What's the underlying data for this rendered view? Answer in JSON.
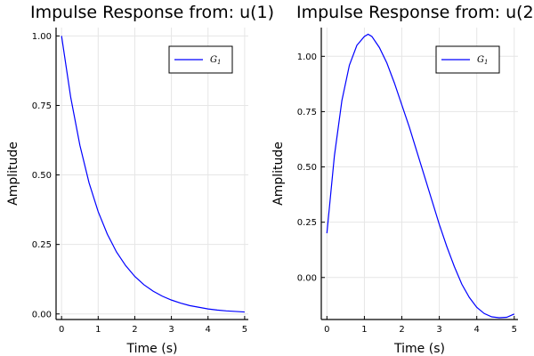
{
  "chart_data": [
    {
      "type": "line",
      "title": "Impulse Response from: u(1)",
      "xlabel": "Time (s)",
      "ylabel": "Amplitude",
      "xlim": [
        -0.15,
        5.1
      ],
      "ylim": [
        -0.02,
        1.03
      ],
      "xticks": [
        0,
        1,
        2,
        3,
        4,
        5
      ],
      "xtick_labels": [
        "0",
        "1",
        "2",
        "3",
        "4",
        "5"
      ],
      "yticks": [
        0,
        0.25,
        0.5,
        0.75,
        1.0
      ],
      "ytick_labels": [
        "0.00",
        "0.25",
        "0.50",
        "0.75",
        "1.00"
      ],
      "grid": true,
      "legend_position": "top-right",
      "series": [
        {
          "name": "G",
          "name_subscript": "1",
          "color": "#0000ff",
          "x": [
            0,
            0.25,
            0.5,
            0.75,
            1,
            1.25,
            1.5,
            1.75,
            2,
            2.25,
            2.5,
            2.75,
            3,
            3.25,
            3.5,
            3.75,
            4,
            4.25,
            4.5,
            4.75,
            5
          ],
          "y": [
            1.0,
            0.779,
            0.607,
            0.472,
            0.368,
            0.287,
            0.223,
            0.174,
            0.135,
            0.105,
            0.082,
            0.064,
            0.05,
            0.039,
            0.03,
            0.024,
            0.018,
            0.014,
            0.011,
            0.009,
            0.007
          ]
        }
      ]
    },
    {
      "type": "line",
      "title": "Impulse Response from: u(2",
      "xlabel": "Time (s)",
      "ylabel": "Amplitude",
      "xlim": [
        -0.15,
        5.1
      ],
      "ylim": [
        -0.19,
        1.13
      ],
      "xticks": [
        0,
        1,
        2,
        3,
        4,
        5
      ],
      "xtick_labels": [
        "0",
        "1",
        "2",
        "3",
        "4",
        "5"
      ],
      "yticks": [
        0,
        0.25,
        0.5,
        0.75,
        1.0
      ],
      "ytick_labels": [
        "0.00",
        "0.25",
        "0.50",
        "0.75",
        "1.00"
      ],
      "grid": true,
      "legend_position": "top-right",
      "series": [
        {
          "name": "G",
          "name_subscript": "1",
          "color": "#0000ff",
          "x": [
            0,
            0.2,
            0.4,
            0.6,
            0.8,
            1.0,
            1.1,
            1.2,
            1.4,
            1.6,
            1.8,
            2.0,
            2.2,
            2.4,
            2.6,
            2.8,
            3.0,
            3.2,
            3.4,
            3.6,
            3.8,
            4.0,
            4.2,
            4.4,
            4.6,
            4.8,
            5.0
          ],
          "y": [
            0.2,
            0.55,
            0.8,
            0.96,
            1.05,
            1.09,
            1.1,
            1.09,
            1.04,
            0.97,
            0.88,
            0.78,
            0.68,
            0.57,
            0.46,
            0.35,
            0.24,
            0.14,
            0.05,
            -0.03,
            -0.09,
            -0.135,
            -0.163,
            -0.178,
            -0.182,
            -0.18,
            -0.165
          ]
        }
      ]
    }
  ]
}
